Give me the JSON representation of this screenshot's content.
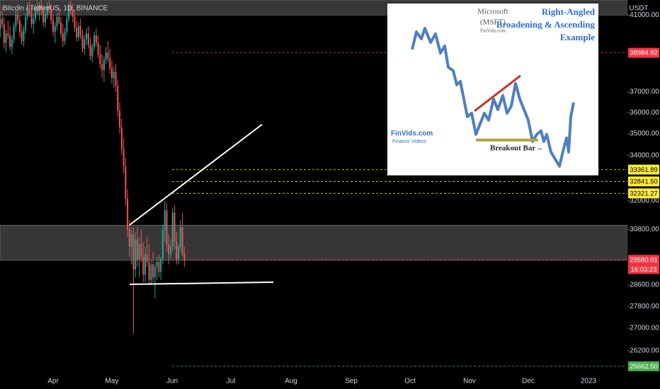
{
  "chart_data": {
    "type": "candlestick",
    "title": "Bitcoin / TetherUS, 1D, BINANCE",
    "currency": "USDT",
    "countdown": "16:03:23",
    "log_scale": true,
    "up_color": "#26a69a",
    "down_color": "#ef5350",
    "ylim": [
      25420,
      41830
    ],
    "yticks": [
      {
        "value": 41000,
        "label": "41000.00"
      },
      {
        "value": 37000,
        "label": "37000.00"
      },
      {
        "value": 36000,
        "label": "36000.00"
      },
      {
        "value": 35000,
        "label": "35000.00"
      },
      {
        "value": 34000,
        "label": "34000.00"
      },
      {
        "value": 32000,
        "label": "32000.00"
      },
      {
        "value": 30800,
        "label": "30800.00"
      },
      {
        "value": 28600,
        "label": "28600.00"
      },
      {
        "value": 27800,
        "label": "27800.00"
      },
      {
        "value": 27000,
        "label": "27000.00"
      },
      {
        "value": 26200,
        "label": "26200.00"
      }
    ],
    "xticks": [
      "Apr",
      "May",
      "Jun",
      "Jul",
      "Aug",
      "Sep",
      "Oct",
      "Nov",
      "Dec",
      "2023"
    ],
    "price_levels": [
      {
        "value": 38984.92,
        "color": "#f23645"
      },
      {
        "value": 33361.89,
        "color": "#ffeb3b"
      },
      {
        "value": 32841.5,
        "label": "32841.50",
        "color": "#ffeb3b"
      },
      {
        "value": 32321.27,
        "color": "#ffeb3b"
      },
      {
        "value": 29580.01,
        "color": "#f23645"
      },
      {
        "value": 25662.5,
        "label": "25662.50",
        "color": "#4caf50"
      }
    ],
    "zones": [
      [
        41000,
        41830
      ],
      [
        29560,
        30980
      ]
    ],
    "ohlc": [
      [
        40200,
        41200,
        39800,
        40800
      ],
      [
        40800,
        41500,
        40300,
        40500
      ],
      [
        40500,
        40900,
        39200,
        39500
      ],
      [
        39500,
        40200,
        39000,
        40000
      ],
      [
        40000,
        40700,
        39700,
        39900
      ],
      [
        39900,
        40400,
        39100,
        39300
      ],
      [
        39300,
        39900,
        38900,
        39700
      ],
      [
        39700,
        40600,
        39500,
        40400
      ],
      [
        40400,
        41300,
        40100,
        41000
      ],
      [
        41000,
        41600,
        40500,
        40700
      ],
      [
        40700,
        41000,
        39800,
        40100
      ],
      [
        40100,
        40500,
        39400,
        39600
      ],
      [
        39600,
        40400,
        39300,
        40200
      ],
      [
        40200,
        41100,
        40000,
        40900
      ],
      [
        40900,
        41700,
        40700,
        41400
      ],
      [
        41400,
        41800,
        40900,
        41100
      ],
      [
        41100,
        41500,
        40300,
        40500
      ],
      [
        40500,
        41000,
        40000,
        40800
      ],
      [
        40800,
        41600,
        40600,
        41400
      ],
      [
        41400,
        41800,
        41000,
        41200
      ],
      [
        41200,
        41700,
        40700,
        41500
      ],
      [
        41500,
        41800,
        41000,
        41300
      ],
      [
        41300,
        41600,
        40400,
        40600
      ],
      [
        40600,
        41200,
        40300,
        41000
      ],
      [
        41000,
        41700,
        40800,
        41500
      ],
      [
        41500,
        41800,
        41100,
        41300
      ],
      [
        41300,
        41600,
        40500,
        40700
      ],
      [
        40700,
        41000,
        39900,
        40100
      ],
      [
        40100,
        40600,
        39500,
        40400
      ],
      [
        40400,
        41100,
        40200,
        40900
      ],
      [
        40900,
        41400,
        40500,
        40600
      ],
      [
        40600,
        40900,
        39800,
        40000
      ],
      [
        40000,
        40500,
        39300,
        39600
      ],
      [
        39600,
        40300,
        39400,
        40100
      ],
      [
        40100,
        41000,
        39900,
        40800
      ],
      [
        40800,
        41700,
        40600,
        41500
      ],
      [
        41500,
        41800,
        41000,
        41200
      ],
      [
        41200,
        41600,
        40600,
        40900
      ],
      [
        40900,
        41300,
        40100,
        40300
      ],
      [
        40300,
        40700,
        39600,
        39800
      ],
      [
        39800,
        40600,
        39600,
        40400
      ],
      [
        40400,
        40800,
        39700,
        39900
      ],
      [
        39900,
        40200,
        39000,
        39200
      ],
      [
        39200,
        39900,
        38900,
        39700
      ],
      [
        39700,
        40300,
        39400,
        40000
      ],
      [
        40000,
        40400,
        39200,
        39400
      ],
      [
        39400,
        39800,
        38600,
        38800
      ],
      [
        38800,
        39500,
        38500,
        39300
      ],
      [
        39300,
        40100,
        39100,
        39900
      ],
      [
        39900,
        40300,
        39300,
        39500
      ],
      [
        39500,
        39900,
        38700,
        38900
      ],
      [
        38900,
        39400,
        38200,
        38400
      ],
      [
        38400,
        38900,
        37700,
        38100
      ],
      [
        38100,
        38800,
        37500,
        38600
      ],
      [
        38600,
        39300,
        38400,
        39000
      ],
      [
        39000,
        39600,
        38500,
        38700
      ],
      [
        38700,
        39200,
        37900,
        38200
      ],
      [
        38200,
        38600,
        37400,
        37700
      ],
      [
        37700,
        38300,
        37200,
        38000
      ],
      [
        38000,
        38400,
        37000,
        37300
      ],
      [
        37300,
        37600,
        35800,
        36100
      ],
      [
        36100,
        36500,
        35000,
        35300
      ],
      [
        35300,
        35700,
        34000,
        34300
      ],
      [
        34300,
        34800,
        33200,
        33500
      ],
      [
        33500,
        33900,
        31800,
        32100
      ],
      [
        32100,
        32500,
        30500,
        30800
      ],
      [
        30800,
        31200,
        29700,
        30100
      ],
      [
        30100,
        30900,
        29400,
        30600
      ],
      [
        30600,
        30900,
        26800,
        29200
      ],
      [
        29200,
        30700,
        28900,
        30400
      ],
      [
        30400,
        30900,
        29300,
        29600
      ],
      [
        29600,
        30500,
        28900,
        30200
      ],
      [
        30200,
        30800,
        29500,
        29700
      ],
      [
        29700,
        30300,
        28700,
        29000
      ],
      [
        29000,
        30100,
        28700,
        29800
      ],
      [
        29800,
        30500,
        29300,
        29500
      ],
      [
        29500,
        30200,
        28600,
        28800
      ],
      [
        28800,
        29600,
        28600,
        29400
      ],
      [
        29400,
        29900,
        28700,
        28900
      ],
      [
        28900,
        29500,
        28100,
        29300
      ],
      [
        29300,
        29700,
        28800,
        29500
      ],
      [
        29500,
        29800,
        28900,
        29100
      ],
      [
        29100,
        29700,
        28800,
        29600
      ],
      [
        29600,
        31000,
        29400,
        30800
      ],
      [
        30800,
        32000,
        30300,
        31600
      ],
      [
        31600,
        31900,
        29900,
        30200
      ],
      [
        30200,
        30600,
        29400,
        29800
      ],
      [
        29800,
        30400,
        29600,
        30100
      ],
      [
        30100,
        31700,
        29900,
        31500
      ],
      [
        31500,
        31800,
        30000,
        30300
      ],
      [
        30300,
        30700,
        29400,
        29600
      ],
      [
        29600,
        30200,
        29400,
        30100
      ],
      [
        30100,
        31200,
        29900,
        30900
      ],
      [
        30900,
        31500,
        29700,
        29800
      ],
      [
        29800,
        30100,
        29300,
        29580
      ]
    ]
  },
  "inset": {
    "ticker": "Microsoft",
    "symbol": "(MSFT)",
    "site": "FinVids.com",
    "heading": [
      "Right-Angled",
      "Broadening & Ascending",
      "Example"
    ],
    "annotation": "Breakout Bar→",
    "logo": "FinVids.com",
    "logo_sub": "Finance Videos"
  }
}
